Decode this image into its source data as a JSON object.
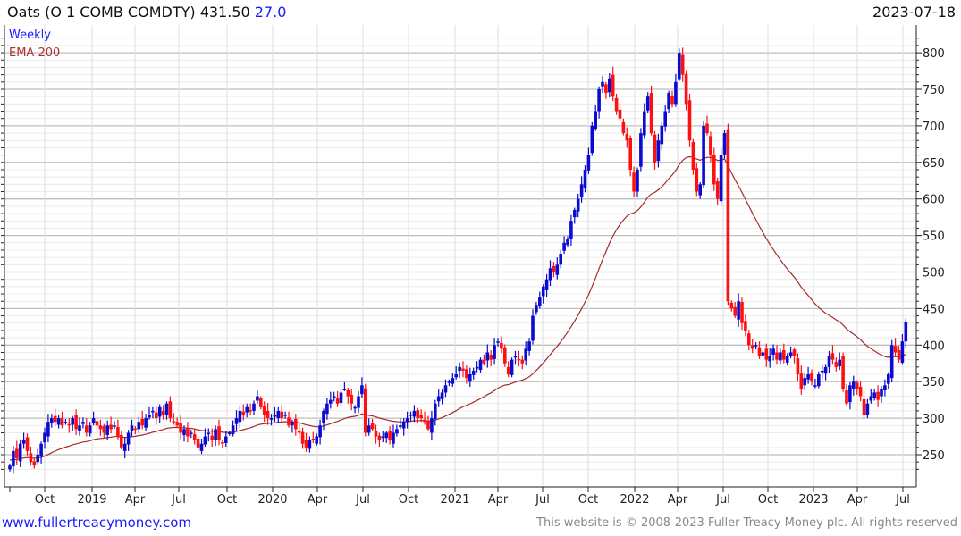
{
  "header": {
    "name": "Oats",
    "ticker": " (O 1 COMB COMDTY) ",
    "price": "431.50",
    "change": "27.0",
    "date": "2023-07-18"
  },
  "legend": {
    "series": "Weekly",
    "indicator": "EMA 200"
  },
  "footer": {
    "site": "www.fullertreacymoney.com",
    "copyright": "This website is © 2008-2023 Fuller Treacy Money plc. All rights reserved"
  },
  "colors": {
    "up": "#0a0ad0",
    "down": "#ff1010",
    "ema": "#a52a2a"
  },
  "chart_data": {
    "type": "candlestick",
    "title": "Oats (O 1 COMB COMDTY) 431.50 27.0",
    "frequency": "Weekly",
    "ylim": [
      215,
      830
    ],
    "y_ticks": [
      250,
      300,
      350,
      400,
      450,
      500,
      550,
      600,
      650,
      700,
      750,
      800
    ],
    "x_ticks": [
      "Oct",
      "2019",
      "Apr",
      "Jul",
      "Oct",
      "2020",
      "Apr",
      "Jul",
      "Oct",
      "2021",
      "Apr",
      "Jul",
      "Oct",
      "2022",
      "Apr",
      "Jul",
      "Oct",
      "2023",
      "Apr",
      "Jul"
    ],
    "grid": true,
    "weekly_closes": [
      235,
      255,
      245,
      265,
      270,
      255,
      240,
      235,
      250,
      265,
      280,
      295,
      300,
      295,
      300,
      290,
      295,
      290,
      300,
      285,
      290,
      295,
      280,
      290,
      300,
      290,
      285,
      280,
      290,
      285,
      290,
      275,
      260,
      265,
      280,
      290,
      285,
      295,
      290,
      300,
      305,
      310,
      300,
      315,
      305,
      320,
      300,
      295,
      290,
      280,
      285,
      275,
      280,
      270,
      260,
      265,
      275,
      280,
      270,
      285,
      270,
      265,
      275,
      280,
      290,
      300,
      310,
      305,
      315,
      310,
      320,
      330,
      315,
      305,
      300,
      300,
      305,
      310,
      300,
      305,
      290,
      295,
      285,
      280,
      265,
      260,
      270,
      270,
      275,
      290,
      310,
      320,
      325,
      330,
      320,
      335,
      340,
      330,
      320,
      315,
      330,
      345,
      280,
      290,
      285,
      275,
      270,
      275,
      280,
      270,
      280,
      285,
      290,
      295,
      300,
      305,
      310,
      300,
      300,
      295,
      285,
      300,
      320,
      330,
      335,
      345,
      350,
      355,
      360,
      370,
      365,
      355,
      360,
      365,
      370,
      380,
      375,
      390,
      380,
      400,
      405,
      395,
      375,
      360,
      380,
      385,
      380,
      375,
      395,
      405,
      440,
      455,
      465,
      480,
      490,
      505,
      500,
      510,
      525,
      540,
      545,
      570,
      585,
      600,
      620,
      640,
      660,
      700,
      720,
      750,
      760,
      745,
      765,
      740,
      720,
      710,
      690,
      680,
      640,
      610,
      640,
      690,
      720,
      740,
      690,
      650,
      680,
      700,
      720,
      745,
      730,
      760,
      800,
      770,
      730,
      680,
      640,
      610,
      620,
      700,
      690,
      660,
      620,
      600,
      660,
      690,
      460,
      450,
      440,
      460,
      430,
      420,
      400,
      395,
      400,
      385,
      390,
      380,
      385,
      395,
      380,
      390,
      380,
      385,
      390,
      385,
      360,
      340,
      355,
      360,
      350,
      345,
      360,
      365,
      370,
      385,
      380,
      370,
      380,
      340,
      320,
      345,
      350,
      340,
      330,
      305,
      320,
      330,
      335,
      325,
      340,
      345,
      360,
      400,
      390,
      380,
      405,
      431.5
    ],
    "series": [
      {
        "name": "Weekly",
        "kind": "candles"
      },
      {
        "name": "EMA 200",
        "kind": "line"
      }
    ]
  }
}
